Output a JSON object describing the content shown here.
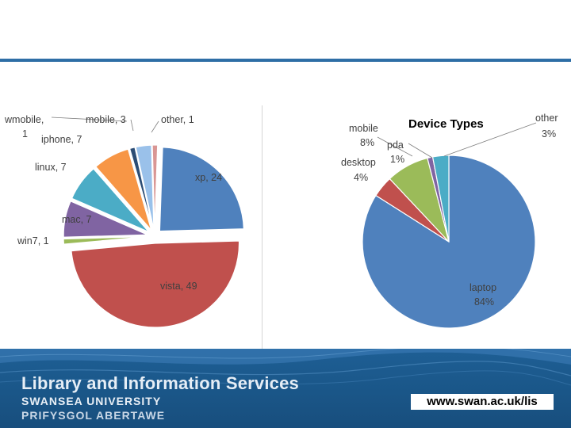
{
  "chart_data": [
    {
      "type": "pie",
      "title": "",
      "slices": [
        {
          "label": "xp",
          "value": 24,
          "text": "xp, 24",
          "color": "#4f81bd"
        },
        {
          "label": "vista",
          "value": 49,
          "text": "vista, 49",
          "color": "#c0504d"
        },
        {
          "label": "win7",
          "value": 1,
          "text": "win7, 1",
          "color": "#9bbb59"
        },
        {
          "label": "mac",
          "value": 7,
          "text": "mac, 7",
          "color": "#8064a2"
        },
        {
          "label": "linux",
          "value": 7,
          "text": "linux, 7",
          "color": "#4bacc6"
        },
        {
          "label": "iphone",
          "value": 7,
          "text": "iphone, 7",
          "color": "#f79646"
        },
        {
          "label": "wmobile",
          "value": 1,
          "text": "wmobile,",
          "text2": "1",
          "color": "#2c4d75"
        },
        {
          "label": "mobile",
          "value": 3,
          "text": "mobile, 3",
          "color": "#9ac1ea"
        },
        {
          "label": "other",
          "value": 1,
          "text": "other, 1",
          "color": "#d99694"
        }
      ],
      "exploded": true
    },
    {
      "type": "pie",
      "title": "Device Types",
      "slices": [
        {
          "label": "laptop",
          "value": 84,
          "text": "laptop",
          "pct": "84%",
          "color": "#4f81bd"
        },
        {
          "label": "desktop",
          "value": 4,
          "text": "desktop",
          "pct": "4%",
          "color": "#c0504d"
        },
        {
          "label": "mobile",
          "value": 8,
          "text": "mobile",
          "pct": "8%",
          "color": "#9bbb59"
        },
        {
          "label": "pda",
          "value": 1,
          "text": "pda",
          "pct": "1%",
          "color": "#8064a2"
        },
        {
          "label": "other",
          "value": 3,
          "text": "other",
          "pct": "3%",
          "color": "#4bacc6"
        }
      ]
    }
  ],
  "footer": {
    "title": "Library and Information Services",
    "university": "SWANSEA UNIVERSITY",
    "welsh": "PRIFYSGOL ABERTAWE",
    "url": "www.swan.ac.uk/lis"
  }
}
